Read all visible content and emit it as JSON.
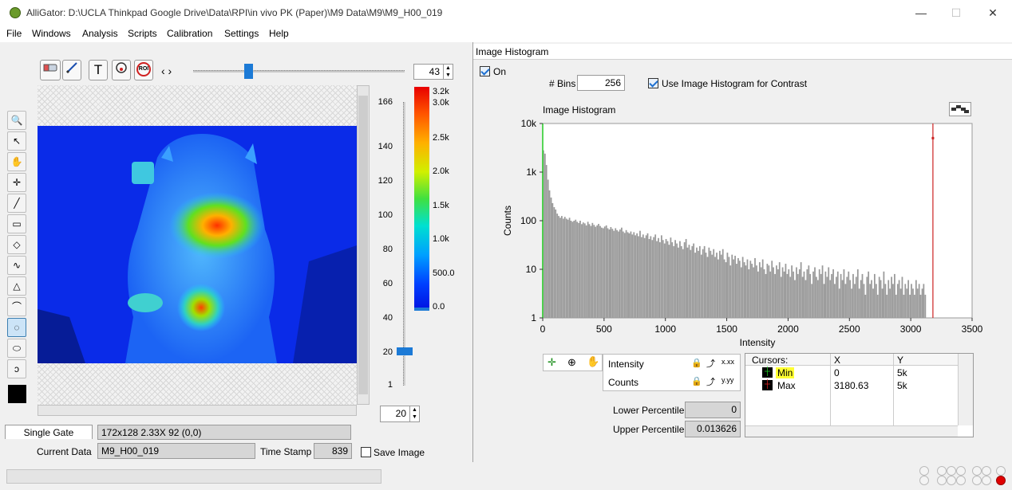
{
  "window": {
    "title": "AlliGator: D:\\UCLA Thinkpad Google Drive\\Data\\RPI\\in vivo PK (Paper)\\M9 Data\\M9\\M9_H00_019",
    "minimize": "—",
    "maximize": "☐",
    "close": "✕"
  },
  "menu": [
    "File",
    "Windows",
    "Analysis",
    "Scripts",
    "Calibration",
    "Settings",
    "Help"
  ],
  "image_panel": {
    "toolbar": {
      "eraser_icon": "eraser-icon",
      "pen_icon": "pen-icon",
      "text_tool": "T",
      "roi_label": "ROI",
      "nav_arrows": "‹ ›",
      "frame_value": "43"
    },
    "tools": [
      "zoom-icon",
      "arrow-icon",
      "hand-icon",
      "crosshair-icon",
      "line-icon",
      "rectangle-icon",
      "diamond-icon",
      "freehand-icon",
      "polygon-icon",
      "curve-icon",
      "freeform-roi-icon",
      "ellipse-icon",
      "spiral-icon"
    ],
    "slider_ticks": [
      "166",
      "140",
      "120",
      "100",
      "80",
      "60",
      "40",
      "20",
      "1"
    ],
    "slider_value": "20",
    "colorscale_ticks": [
      "3.2k",
      "3.0k",
      "2.5k",
      "2.0k",
      "1.5k",
      "1.0k",
      "500.0",
      "0.0"
    ],
    "gate_tab": "Single Gate",
    "image_info": "172x128 2.33X 92    (0,0)",
    "current_data_label": "Current Data",
    "current_data_value": "M9_H00_019",
    "time_stamp_label": "Time Stamp",
    "time_stamp_value": "839",
    "save_image_label": "Save Image"
  },
  "histogram_panel": {
    "header": "Image Histogram",
    "on_label": "On",
    "bins_label": "# Bins",
    "bins_value": "256",
    "use_hist_label": "Use Image Histogram for Contrast",
    "plot_title": "Image Histogram",
    "lower_percentile_label": "Lower Percentile",
    "lower_percentile_value": "0",
    "upper_percentile_label": "Upper Percentile",
    "upper_percentile_value": "0.013626",
    "legend": [
      {
        "name": "Intensity"
      },
      {
        "name": "Counts"
      }
    ],
    "format_x": "x.xx",
    "format_y": "y.yy",
    "cursors": {
      "headers": [
        "Cursors:",
        "X",
        "Y"
      ],
      "rows": [
        {
          "name": "Min",
          "x": "0",
          "y": "5k"
        },
        {
          "name": "Max",
          "x": "3180.63",
          "y": "5k"
        }
      ]
    }
  },
  "colors": {
    "accent": "#1c6fd0",
    "bar": "#9a9a9a",
    "min_cursor": "#22cc22",
    "max_cursor": "#cc2222",
    "highlight": "#ffff33"
  },
  "chart_data": {
    "type": "bar",
    "title": "Image Histogram",
    "xlabel": "Intensity",
    "ylabel": "Counts",
    "xlim": [
      0,
      3500
    ],
    "ylim": [
      1,
      10000
    ],
    "yscale": "log",
    "x_ticks": [
      "0",
      "500",
      "1000",
      "1500",
      "2000",
      "2500",
      "3000",
      "3500"
    ],
    "y_ticks": [
      "1",
      "10",
      "100",
      "1k",
      "10k"
    ],
    "bin_width": 12.5,
    "x": [
      6,
      19,
      31,
      44,
      56,
      69,
      81,
      94,
      106,
      119,
      131,
      144,
      156,
      169,
      181,
      194,
      206,
      219,
      231,
      244,
      256,
      269,
      281,
      294,
      306,
      319,
      331,
      344,
      356,
      369,
      381,
      394,
      406,
      419,
      431,
      444,
      456,
      469,
      481,
      494,
      506,
      519,
      531,
      544,
      556,
      569,
      581,
      594,
      606,
      619,
      631,
      644,
      656,
      669,
      681,
      694,
      706,
      719,
      731,
      744,
      756,
      769,
      781,
      794,
      806,
      819,
      831,
      844,
      856,
      869,
      881,
      894,
      906,
      919,
      931,
      944,
      956,
      969,
      981,
      994,
      1006,
      1019,
      1031,
      1044,
      1056,
      1069,
      1081,
      1094,
      1106,
      1119,
      1131,
      1144,
      1156,
      1169,
      1181,
      1194,
      1206,
      1219,
      1231,
      1244,
      1256,
      1269,
      1281,
      1294,
      1306,
      1319,
      1331,
      1344,
      1356,
      1369,
      1381,
      1394,
      1406,
      1419,
      1431,
      1444,
      1456,
      1469,
      1481,
      1494,
      1506,
      1519,
      1531,
      1544,
      1556,
      1569,
      1581,
      1594,
      1606,
      1619,
      1631,
      1644,
      1656,
      1669,
      1681,
      1694,
      1706,
      1719,
      1731,
      1744,
      1756,
      1769,
      1781,
      1794,
      1806,
      1819,
      1831,
      1844,
      1856,
      1869,
      1881,
      1894,
      1906,
      1919,
      1931,
      1944,
      1956,
      1969,
      1981,
      1994,
      2006,
      2019,
      2031,
      2044,
      2056,
      2069,
      2081,
      2094,
      2106,
      2119,
      2131,
      2144,
      2156,
      2169,
      2181,
      2194,
      2206,
      2219,
      2231,
      2244,
      2256,
      2269,
      2281,
      2294,
      2306,
      2319,
      2331,
      2344,
      2356,
      2369,
      2381,
      2394,
      2406,
      2419,
      2431,
      2444,
      2456,
      2469,
      2481,
      2494,
      2506,
      2519,
      2531,
      2544,
      2556,
      2569,
      2581,
      2594,
      2606,
      2619,
      2631,
      2644,
      2656,
      2669,
      2681,
      2694,
      2706,
      2719,
      2731,
      2744,
      2756,
      2769,
      2781,
      2794,
      2806,
      2819,
      2831,
      2844,
      2856,
      2869,
      2881,
      2894,
      2906,
      2919,
      2931,
      2944,
      2956,
      2969,
      2981,
      2994,
      3006,
      3019,
      3031,
      3044,
      3056,
      3069,
      3081,
      3094,
      3106,
      3119
    ],
    "values": [
      2800,
      2400,
      1400,
      700,
      420,
      300,
      230,
      190,
      170,
      140,
      125,
      115,
      125,
      110,
      120,
      110,
      105,
      115,
      100,
      95,
      100,
      105,
      95,
      90,
      100,
      85,
      92,
      88,
      80,
      95,
      85,
      78,
      90,
      82,
      75,
      80,
      86,
      78,
      72,
      70,
      76,
      80,
      70,
      66,
      74,
      68,
      62,
      70,
      64,
      60,
      66,
      72,
      60,
      56,
      64,
      58,
      55,
      60,
      52,
      58,
      50,
      55,
      48,
      62,
      46,
      52,
      44,
      50,
      55,
      42,
      48,
      40,
      46,
      52,
      38,
      44,
      36,
      50,
      40,
      34,
      42,
      38,
      32,
      45,
      36,
      30,
      40,
      34,
      28,
      38,
      30,
      26,
      36,
      42,
      28,
      32,
      25,
      30,
      34,
      22,
      28,
      24,
      30,
      20,
      26,
      30,
      22,
      18,
      28,
      24,
      20,
      26,
      18,
      22,
      16,
      24,
      20,
      26,
      16,
      14,
      22,
      18,
      12,
      20,
      16,
      19,
      13,
      17,
      15,
      11,
      18,
      14,
      12,
      16,
      10,
      15,
      13,
      11,
      17,
      12,
      9,
      14,
      11,
      16,
      10,
      8,
      13,
      12,
      9,
      15,
      11,
      8,
      12,
      10,
      14,
      7,
      11,
      9,
      13,
      8,
      10,
      7,
      12,
      9,
      6,
      11,
      8,
      10,
      14,
      7,
      9,
      6,
      10,
      12,
      8,
      5,
      9,
      11,
      7,
      6,
      10,
      8,
      12,
      5,
      9,
      7,
      11,
      6,
      8,
      10,
      5,
      7,
      9,
      4,
      8,
      6,
      10,
      5,
      7,
      9,
      6,
      4,
      8,
      5,
      7,
      10,
      4,
      6,
      8,
      5,
      3,
      7,
      9,
      5,
      6,
      4,
      8,
      5,
      3,
      7,
      6,
      4,
      9,
      5,
      3,
      6,
      4,
      7,
      5,
      8,
      3,
      5,
      6,
      4,
      7,
      3,
      5,
      4,
      6,
      3,
      5,
      4,
      3,
      6,
      4,
      5,
      3,
      4,
      5,
      3
    ],
    "cursors": [
      {
        "name": "Min",
        "x": 0,
        "y": 5000
      },
      {
        "name": "Max",
        "x": 3180.63,
        "y": 5000
      }
    ]
  }
}
